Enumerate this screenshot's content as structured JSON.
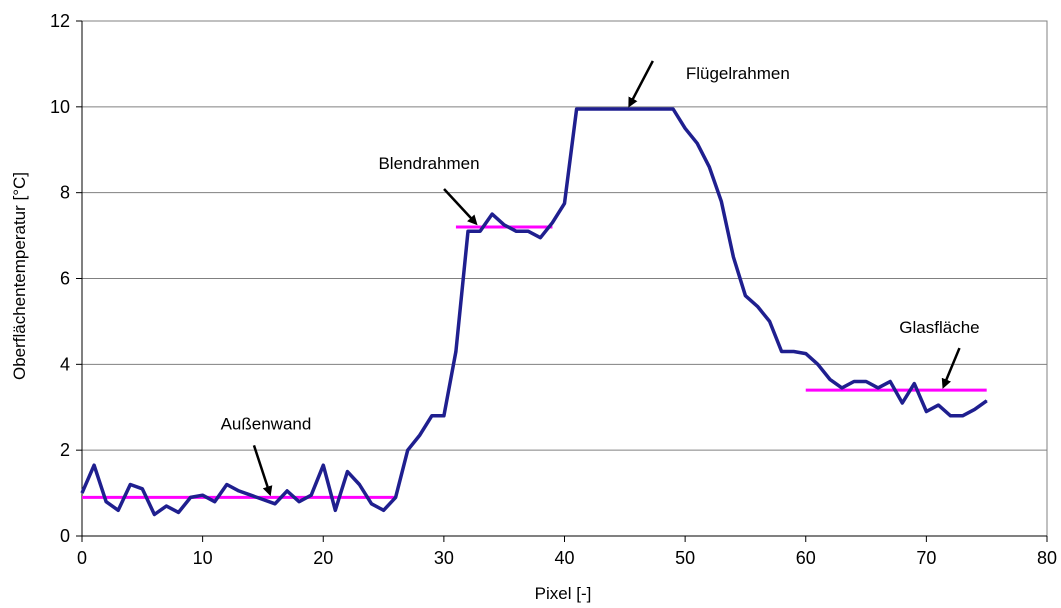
{
  "chart_data": {
    "type": "line",
    "title": "",
    "xlabel": "Pixel [-]",
    "ylabel": "Oberflächentemperatur [°C]",
    "xlim": [
      0,
      80
    ],
    "ylim": [
      0,
      12
    ],
    "x_ticks": [
      0,
      10,
      20,
      30,
      40,
      50,
      60,
      70,
      80
    ],
    "y_ticks": [
      0,
      2,
      4,
      6,
      8,
      10,
      12
    ],
    "grid": "horizontal",
    "legend": "none",
    "colors": {
      "series": "#1f1f8f",
      "reference": "#ff00ff",
      "grid": "#808080"
    },
    "series": [
      {
        "x": [
          0,
          1,
          2,
          3,
          4,
          5,
          6,
          7,
          8,
          9,
          10,
          11,
          12,
          13,
          14,
          15,
          16,
          17,
          18,
          19,
          20,
          21,
          22,
          23,
          24,
          25,
          26,
          27,
          28,
          29,
          30,
          31,
          32,
          33,
          34,
          35,
          36,
          37,
          38,
          39,
          40,
          41,
          42,
          43,
          44,
          45,
          46,
          47,
          48,
          49,
          50,
          51,
          52,
          53,
          54,
          55,
          56,
          57,
          58,
          59,
          60,
          61,
          62,
          63,
          64,
          65,
          66,
          67,
          68,
          69,
          70,
          71,
          72,
          73,
          74,
          75
        ],
        "y": [
          1.0,
          1.65,
          0.8,
          0.6,
          1.2,
          1.1,
          0.5,
          0.7,
          0.55,
          0.9,
          0.95,
          0.8,
          1.2,
          1.05,
          0.95,
          0.85,
          0.75,
          1.05,
          0.8,
          0.95,
          1.65,
          0.6,
          1.5,
          1.2,
          0.75,
          0.6,
          0.9,
          2.0,
          2.35,
          2.8,
          2.8,
          4.3,
          7.1,
          7.1,
          7.5,
          7.25,
          7.1,
          7.1,
          6.95,
          7.3,
          7.75,
          9.95,
          9.95,
          9.95,
          9.95,
          9.95,
          9.95,
          9.95,
          9.95,
          9.95,
          9.5,
          9.15,
          8.6,
          7.8,
          6.5,
          5.6,
          5.35,
          5.0,
          4.3,
          4.3,
          4.25,
          4.0,
          3.65,
          3.45,
          3.6,
          3.6,
          3.45,
          3.6,
          3.1,
          3.55,
          2.9,
          3.05,
          2.8,
          2.8,
          2.95,
          3.15
        ]
      }
    ],
    "reference_lines": [
      {
        "x": [
          0,
          26
        ],
        "y": 0.9
      },
      {
        "x": [
          31,
          39
        ],
        "y": 7.2
      },
      {
        "x": [
          41,
          49
        ],
        "y": 9.95
      },
      {
        "x": [
          60,
          75
        ],
        "y": 3.4
      }
    ],
    "annotations": [
      {
        "text": "Außenwand",
        "x": 15.5,
        "y": 0.9
      },
      {
        "text": "Blendrahmen",
        "x": 32.5,
        "y": 7.2
      },
      {
        "text": "Flügelrahmen",
        "x": 45.5,
        "y": 9.95
      },
      {
        "text": "Glasfläche",
        "x": 71.5,
        "y": 3.4
      }
    ]
  }
}
